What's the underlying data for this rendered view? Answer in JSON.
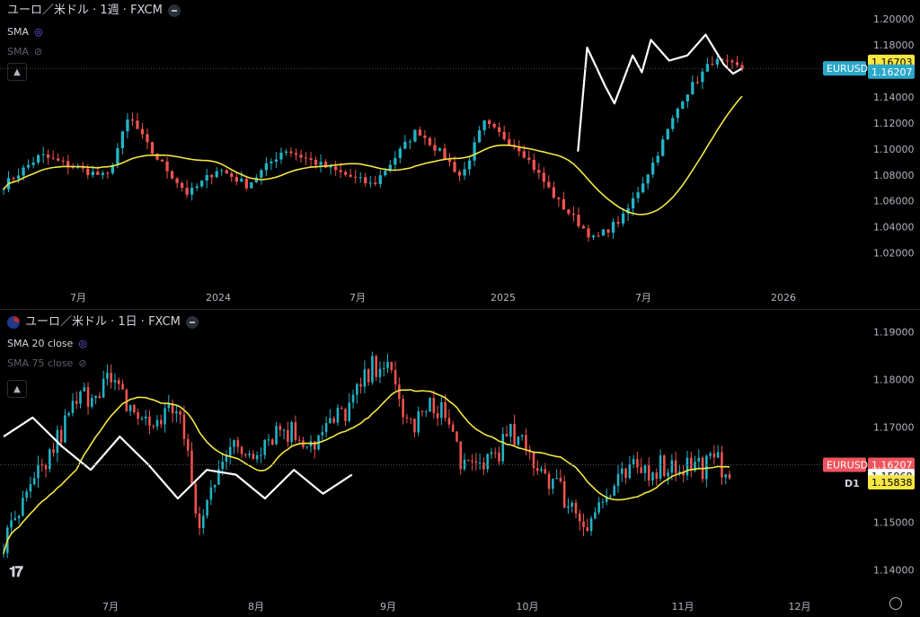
{
  "top_pane": {
    "title": "ユーロ／米ドル · 1週 · FXCM",
    "indicators": [
      {
        "label": "SMA",
        "state": "visible"
      },
      {
        "label": "SMA",
        "state": "hidden"
      }
    ],
    "price_labels": [
      "1.20000",
      "1.18000",
      "1.16000",
      "1.14000",
      "1.12000",
      "1.10000",
      "1.08000",
      "1.06000",
      "1.04000",
      "1.02000"
    ],
    "time_labels": [
      "7月",
      "2024",
      "7月",
      "2025",
      "7月",
      "2026"
    ],
    "sma_tag": "1.16703",
    "symbol_tag": "EURUSD",
    "price_tag": "1.16207"
  },
  "bottom_pane": {
    "title": "ユーロ／米ドル · 1日 · FXCM",
    "indicators": [
      {
        "label": "SMA 20 close",
        "state": "visible"
      },
      {
        "label": "SMA 75 close",
        "state": "hidden"
      }
    ],
    "price_labels": [
      "1.19000",
      "1.18000",
      "1.17000",
      "1.16000",
      "1.15000",
      "1.14000"
    ],
    "time_labels": [
      "7月",
      "8月",
      "9月",
      "10月",
      "11月",
      "12月"
    ],
    "symbol_tag": "EURUSD",
    "price_tag": "1.16207",
    "crosshair_tag": "1.15968",
    "sma_tag": "1.15838",
    "timeframe_label": "D1"
  },
  "colors": {
    "up": "#26a69a",
    "up_candle": "#22b3c7",
    "down": "#ef5350",
    "sma": "#f5e642",
    "zigzag": "#ffffff",
    "symbol_tag_bg": "#2aa7c9",
    "price_tag_bg": "#f0545e",
    "sma_tag_bg": "#f5e642"
  },
  "icons": {
    "indicator_settings": "spinner-icon",
    "indicator_hidden": "eye-off-icon",
    "collapse": "chevron-up-icon",
    "settings": "gear-icon",
    "logo": "tradingview-logo"
  },
  "chart_data": [
    {
      "type": "candlestick",
      "title": "ユーロ／米ドル · 1週 · FXCM",
      "ylim": [
        1.01,
        1.205
      ],
      "x_ticks": [
        "7月",
        "2024",
        "7月",
        "2025",
        "7月",
        "2026"
      ],
      "close_last": 1.16207,
      "sma_last": 1.16703,
      "zigzag": [
        [
          1.098,
          0.63
        ],
        [
          1.178,
          0.64
        ],
        [
          1.148,
          0.66
        ],
        [
          1.135,
          0.67
        ],
        [
          1.172,
          0.69
        ],
        [
          1.159,
          0.7
        ],
        [
          1.184,
          0.71
        ],
        [
          1.168,
          0.73
        ],
        [
          1.172,
          0.75
        ],
        [
          1.188,
          0.77
        ],
        [
          1.165,
          0.79
        ],
        [
          1.158,
          0.8
        ],
        [
          1.162,
          0.81
        ]
      ]
    },
    {
      "type": "candlestick",
      "title": "ユーロ／米ドル · 1日 · FXCM",
      "ylim": [
        1.138,
        1.192
      ],
      "x_ticks": [
        "7月",
        "8月",
        "9月",
        "10月",
        "11月",
        "12月"
      ],
      "close_last": 1.16207,
      "sma20_last": 1.15838,
      "crosshair": 1.15968
    }
  ]
}
